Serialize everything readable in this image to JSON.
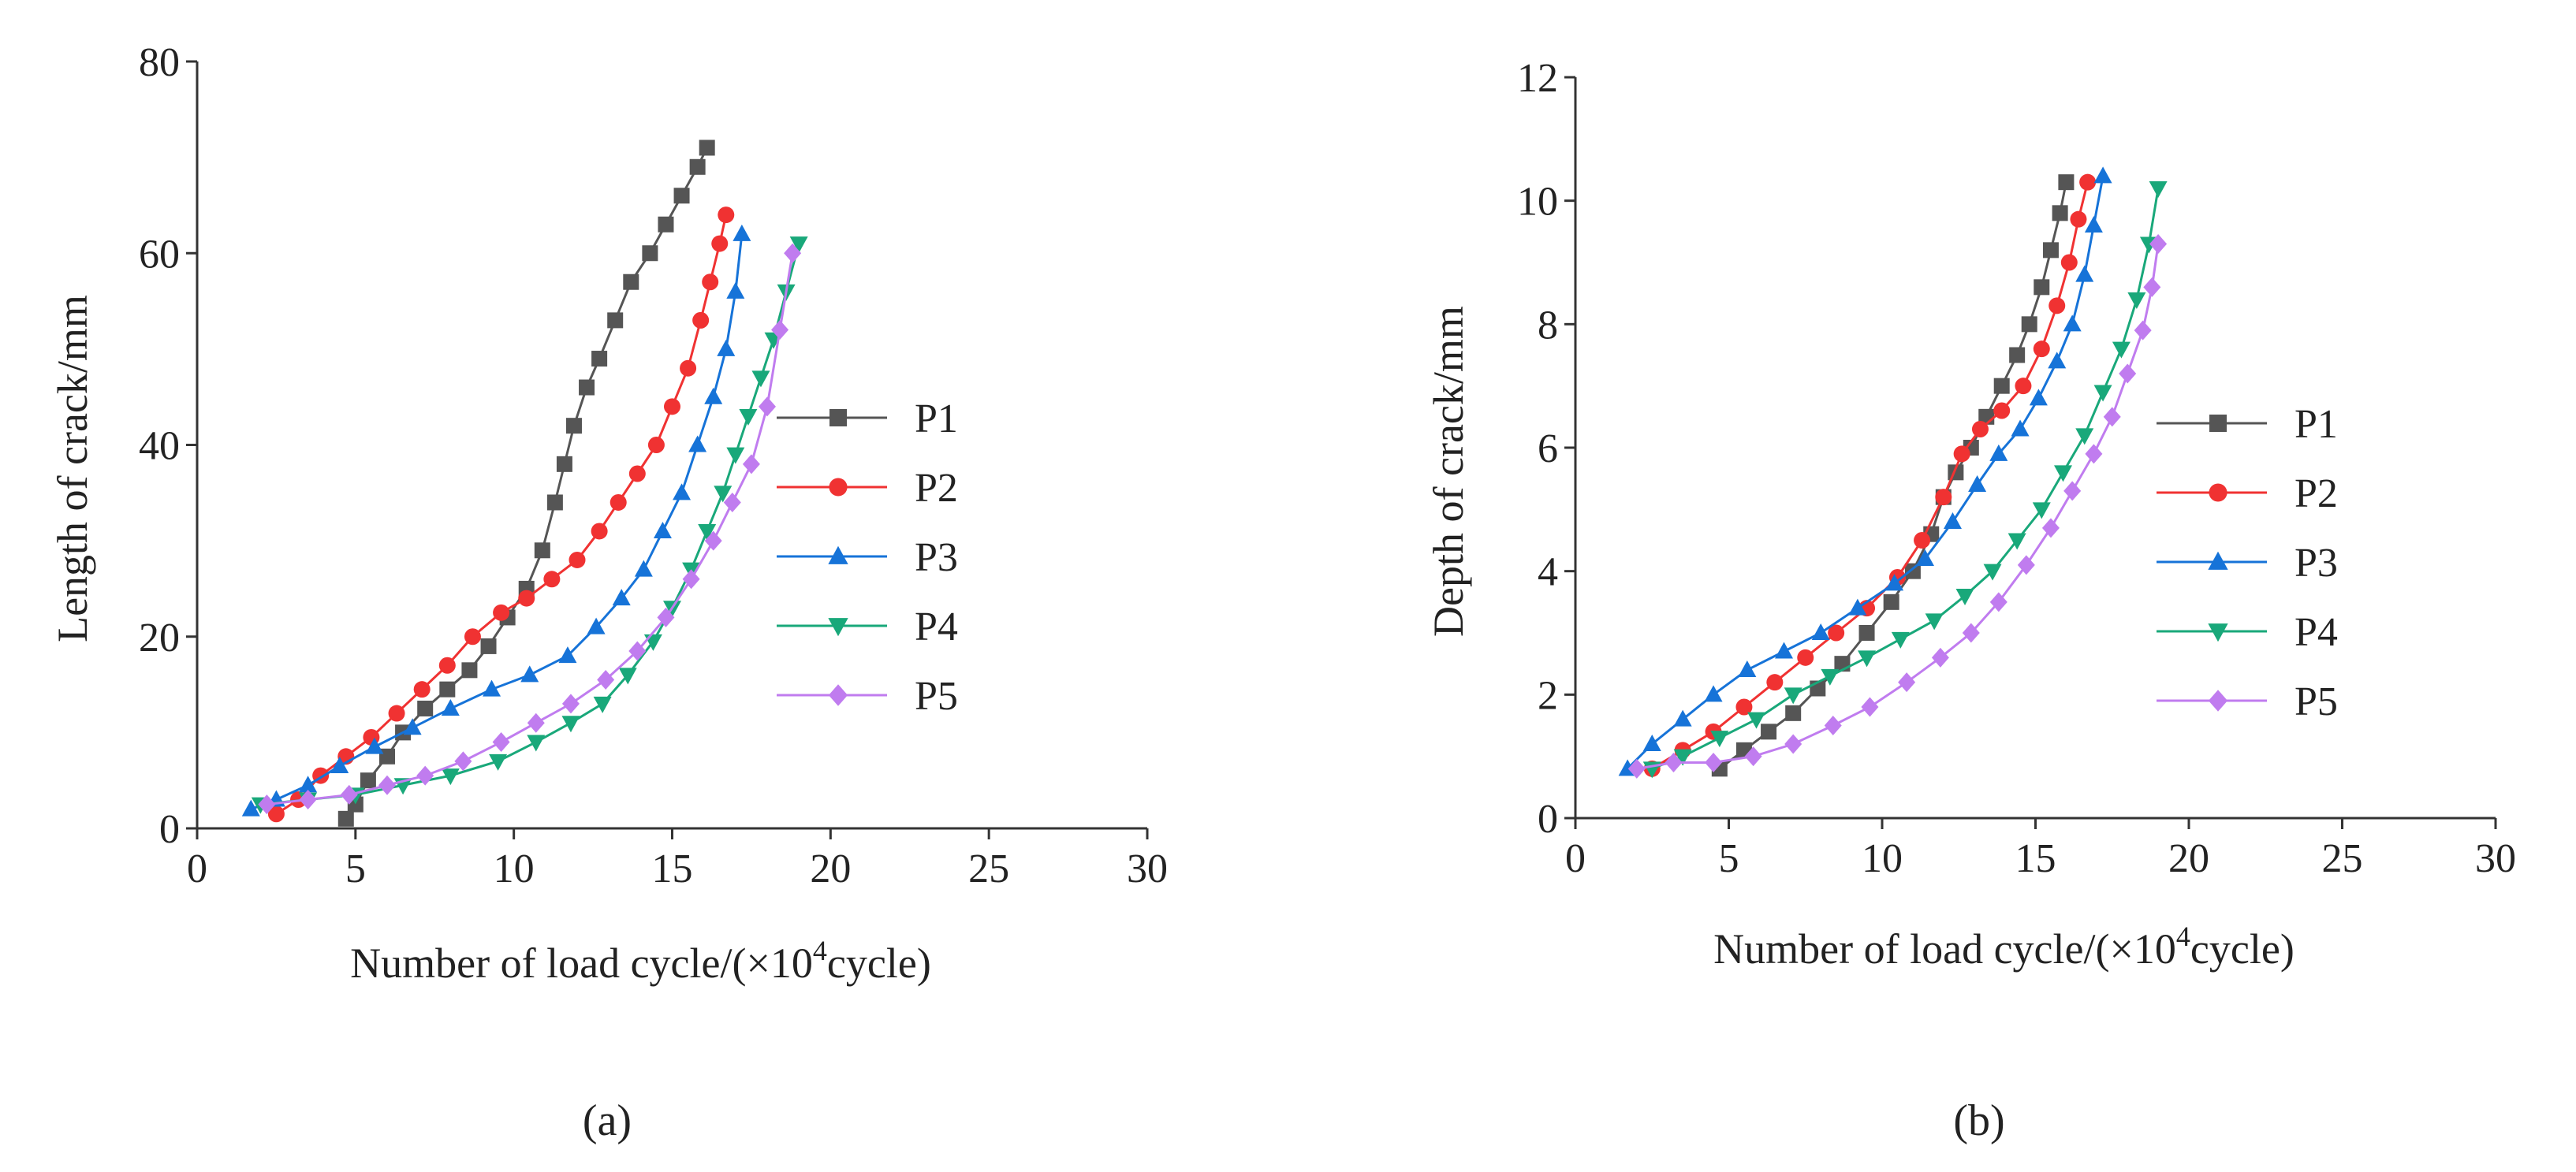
{
  "colors": {
    "P1": "#555555",
    "P2": "#f03232",
    "P3": "#1673d8",
    "P4": "#19a87a",
    "P5": "#c07cef"
  },
  "chart_data": [
    {
      "type": "line",
      "panel": "(a)",
      "xlabel_prefix": "Number of load cycle/(×10",
      "xlabel_exp": "4",
      "xlabel_suffix": "cycle)",
      "ylabel": "Length of crack/mm",
      "xlim": [
        0,
        30
      ],
      "ylim": [
        0,
        80
      ],
      "xticks": [
        0,
        5,
        10,
        15,
        20,
        25,
        30
      ],
      "yticks": [
        0,
        20,
        40,
        60,
        80
      ],
      "legend_position": "right",
      "series": [
        {
          "name": "P1",
          "marker": "square",
          "x": [
            4.7,
            5.0,
            5.4,
            6.0,
            6.5,
            7.2,
            7.9,
            8.6,
            9.2,
            9.8,
            10.4,
            10.9,
            11.3,
            11.6,
            11.9,
            12.3,
            12.7,
            13.2,
            13.7,
            14.3,
            14.8,
            15.3,
            15.8,
            16.1
          ],
          "y": [
            1,
            2.5,
            5,
            7.5,
            10,
            12.5,
            14.5,
            16.5,
            19,
            22,
            25,
            29,
            34,
            38,
            42,
            46,
            49,
            53,
            57,
            60,
            63,
            66,
            69,
            71
          ]
        },
        {
          "name": "P2",
          "marker": "circle",
          "x": [
            2.5,
            3.2,
            3.9,
            4.7,
            5.5,
            6.3,
            7.1,
            7.9,
            8.7,
            9.6,
            10.4,
            11.2,
            12.0,
            12.7,
            13.3,
            13.9,
            14.5,
            15.0,
            15.5,
            15.9,
            16.2,
            16.5,
            16.7
          ],
          "y": [
            1.5,
            3,
            5.5,
            7.5,
            9.5,
            12,
            14.5,
            17,
            20,
            22.5,
            24,
            26,
            28,
            31,
            34,
            37,
            40,
            44,
            48,
            53,
            57,
            61,
            64
          ]
        },
        {
          "name": "P3",
          "marker": "triangle-up",
          "x": [
            1.7,
            2.5,
            3.5,
            4.5,
            5.6,
            6.8,
            8.0,
            9.3,
            10.5,
            11.7,
            12.6,
            13.4,
            14.1,
            14.7,
            15.3,
            15.8,
            16.3,
            16.7,
            17.0,
            17.2
          ],
          "y": [
            2,
            3,
            4.5,
            6.5,
            8.5,
            10.5,
            12.5,
            14.5,
            16,
            18,
            21,
            24,
            27,
            31,
            35,
            40,
            45,
            50,
            56,
            62
          ]
        },
        {
          "name": "P4",
          "marker": "triangle-down",
          "x": [
            2.0,
            3.5,
            5.0,
            6.5,
            8.0,
            9.5,
            10.7,
            11.8,
            12.8,
            13.6,
            14.4,
            15.0,
            15.6,
            16.1,
            16.6,
            17.0,
            17.4,
            17.8,
            18.2,
            18.6,
            19.0
          ],
          "y": [
            2.5,
            3,
            3.5,
            4.5,
            5.5,
            7,
            9,
            11,
            13,
            16,
            19.5,
            23,
            27,
            31,
            35,
            39,
            43,
            47,
            51,
            56,
            61
          ]
        },
        {
          "name": "P5",
          "marker": "diamond",
          "x": [
            2.2,
            3.5,
            4.8,
            6.0,
            7.2,
            8.4,
            9.6,
            10.7,
            11.8,
            12.9,
            13.9,
            14.8,
            15.6,
            16.3,
            16.9,
            17.5,
            18.0,
            18.4,
            18.8
          ],
          "y": [
            2.5,
            3,
            3.5,
            4.5,
            5.5,
            7,
            9,
            11,
            13,
            15.5,
            18.5,
            22,
            26,
            30,
            34,
            38,
            44,
            52,
            60
          ]
        }
      ]
    },
    {
      "type": "line",
      "panel": "(b)",
      "xlabel_prefix": "Number of load cycle/(×10",
      "xlabel_exp": "4",
      "xlabel_suffix": "cycle)",
      "ylabel": "Depth of crack/mm",
      "xlim": [
        0,
        30
      ],
      "ylim": [
        0,
        12
      ],
      "xticks": [
        0,
        5,
        10,
        15,
        20,
        25,
        30
      ],
      "yticks": [
        0,
        2,
        4,
        6,
        8,
        10,
        12
      ],
      "legend_position": "right",
      "series": [
        {
          "name": "P1",
          "marker": "square",
          "x": [
            4.7,
            5.5,
            6.3,
            7.1,
            7.9,
            8.7,
            9.5,
            10.3,
            11.0,
            11.6,
            12.0,
            12.4,
            12.9,
            13.4,
            13.9,
            14.4,
            14.8,
            15.2,
            15.5,
            15.8,
            16.0
          ],
          "y": [
            0.8,
            1.1,
            1.4,
            1.7,
            2.1,
            2.5,
            3.0,
            3.5,
            4.0,
            4.6,
            5.2,
            5.6,
            6.0,
            6.5,
            7.0,
            7.5,
            8.0,
            8.6,
            9.2,
            9.8,
            10.3
          ]
        },
        {
          "name": "P2",
          "marker": "circle",
          "x": [
            2.5,
            3.5,
            4.5,
            5.5,
            6.5,
            7.5,
            8.5,
            9.5,
            10.5,
            11.3,
            12.0,
            12.6,
            13.2,
            13.9,
            14.6,
            15.2,
            15.7,
            16.1,
            16.4,
            16.7
          ],
          "y": [
            0.8,
            1.1,
            1.4,
            1.8,
            2.2,
            2.6,
            3.0,
            3.4,
            3.9,
            4.5,
            5.2,
            5.9,
            6.3,
            6.6,
            7.0,
            7.6,
            8.3,
            9.0,
            9.7,
            10.3
          ]
        },
        {
          "name": "P3",
          "marker": "triangle-up",
          "x": [
            1.7,
            2.5,
            3.5,
            4.5,
            5.6,
            6.8,
            8.0,
            9.2,
            10.4,
            11.4,
            12.3,
            13.1,
            13.8,
            14.5,
            15.1,
            15.7,
            16.2,
            16.6,
            16.9,
            17.2
          ],
          "y": [
            0.8,
            1.2,
            1.6,
            2.0,
            2.4,
            2.7,
            3.0,
            3.4,
            3.8,
            4.2,
            4.8,
            5.4,
            5.9,
            6.3,
            6.8,
            7.4,
            8.0,
            8.8,
            9.6,
            10.4
          ]
        },
        {
          "name": "P4",
          "marker": "triangle-down",
          "x": [
            2.5,
            3.5,
            4.7,
            5.9,
            7.1,
            8.3,
            9.5,
            10.6,
            11.7,
            12.7,
            13.6,
            14.4,
            15.2,
            15.9,
            16.6,
            17.2,
            17.8,
            18.3,
            18.7,
            19.0
          ],
          "y": [
            0.8,
            1.0,
            1.3,
            1.6,
            2.0,
            2.3,
            2.6,
            2.9,
            3.2,
            3.6,
            4.0,
            4.5,
            5.0,
            5.6,
            6.2,
            6.9,
            7.6,
            8.4,
            9.3,
            10.2
          ]
        },
        {
          "name": "P5",
          "marker": "diamond",
          "x": [
            2.0,
            3.2,
            4.5,
            5.8,
            7.1,
            8.4,
            9.6,
            10.8,
            11.9,
            12.9,
            13.8,
            14.7,
            15.5,
            16.2,
            16.9,
            17.5,
            18.0,
            18.5,
            18.8,
            19.0
          ],
          "y": [
            0.8,
            0.9,
            0.9,
            1.0,
            1.2,
            1.5,
            1.8,
            2.2,
            2.6,
            3.0,
            3.5,
            4.1,
            4.7,
            5.3,
            5.9,
            6.5,
            7.2,
            7.9,
            8.6,
            9.3
          ]
        }
      ]
    }
  ]
}
